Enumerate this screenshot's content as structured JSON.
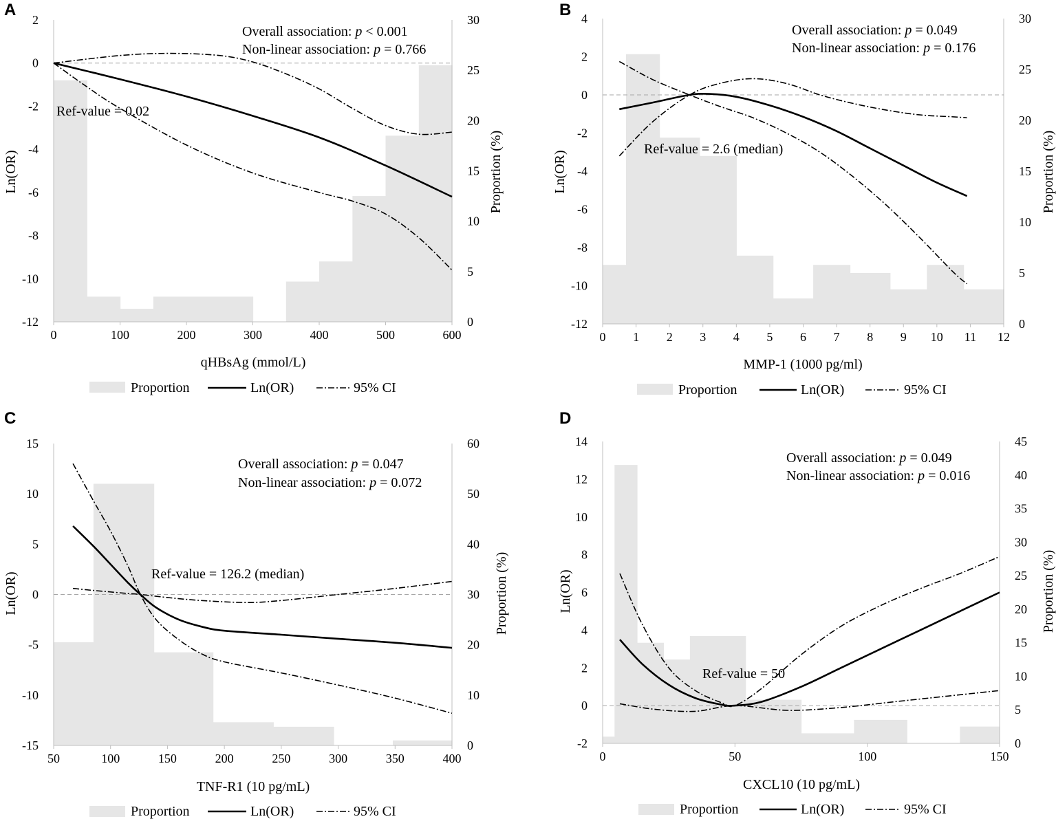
{
  "colors": {
    "bar": "#e6e6e6",
    "line": "#000000",
    "ref": "#a6a6a6",
    "axis": "#bfbfbf"
  },
  "legend": {
    "proportion": "Proportion",
    "lnor": "Ln(OR)",
    "ci": "95% CI"
  },
  "chart_data": [
    {
      "panel": "A",
      "type": "line",
      "title": "",
      "xlabel": "qHBsAg (mmol/L)",
      "ylabel": "Ln(OR)",
      "y2label": "Proportion (%)",
      "xlim": [
        0,
        600
      ],
      "xticks": [
        0,
        100,
        200,
        300,
        400,
        500,
        600
      ],
      "ylim": [
        -12,
        2
      ],
      "yticks": [
        -12,
        -10,
        -8,
        -6,
        -4,
        -2,
        0,
        2
      ],
      "y2lim": [
        0,
        30
      ],
      "y2ticks": [
        0,
        5,
        10,
        15,
        20,
        25,
        30
      ],
      "annotations": {
        "overall_prefix": "Overall association: ",
        "overall_p": "p",
        "overall_value": " < 0.001",
        "nonlinear_prefix": "Non-linear association: ",
        "nonlinear_p": "p",
        "nonlinear_value": " = 0.766",
        "ref": "Ref-value = 0.02"
      },
      "bars": [
        [
          0,
          50,
          24
        ],
        [
          50,
          100,
          2.5
        ],
        [
          100,
          150,
          1.3
        ],
        [
          150,
          300,
          2.5
        ],
        [
          300,
          350,
          0
        ],
        [
          350,
          400,
          4
        ],
        [
          400,
          450,
          6
        ],
        [
          450,
          500,
          12.5
        ],
        [
          500,
          550,
          18.5
        ],
        [
          550,
          600,
          25.5
        ]
      ],
      "series": [
        {
          "name": "Ln(OR)",
          "x": [
            0,
            100,
            200,
            300,
            400,
            500,
            600
          ],
          "values": [
            0,
            -0.75,
            -1.55,
            -2.45,
            -3.45,
            -4.75,
            -6.2
          ]
        },
        {
          "name": "95% CI upper",
          "x": [
            0,
            100,
            175,
            250,
            300,
            350,
            400,
            450,
            500,
            550,
            600
          ],
          "values": [
            0,
            0.35,
            0.45,
            0.35,
            0.05,
            -0.5,
            -1.2,
            -2.1,
            -2.9,
            -3.3,
            -3.2
          ]
        },
        {
          "name": "95% CI lower",
          "x": [
            0,
            50,
            100,
            200,
            300,
            400,
            450,
            500,
            550,
            600
          ],
          "values": [
            0,
            -1.1,
            -2.1,
            -3.8,
            -5.1,
            -6.0,
            -6.4,
            -7.0,
            -8.1,
            -9.6
          ]
        }
      ]
    },
    {
      "panel": "B",
      "type": "line",
      "title": "",
      "xlabel": "MMP-1 (1000 pg/ml)",
      "ylabel": "Ln(OR)",
      "y2label": "Proportion (%)",
      "xlim": [
        0,
        12
      ],
      "xticks": [
        0,
        1,
        2,
        3,
        4,
        5,
        6,
        7,
        8,
        9,
        10,
        11,
        12
      ],
      "ylim": [
        -12,
        4
      ],
      "yticks": [
        -12,
        -10,
        -8,
        -6,
        -4,
        -2,
        0,
        2,
        4
      ],
      "y2lim": [
        0,
        30
      ],
      "y2ticks": [
        0,
        5,
        10,
        15,
        20,
        25,
        30
      ],
      "annotations": {
        "overall_prefix": "Overall association: ",
        "overall_p": "p",
        "overall_value": " = 0.049",
        "nonlinear_prefix": "Non-linear association: ",
        "nonlinear_p": "p",
        "nonlinear_value": " = 0.176",
        "ref": "Ref-value = 2.6 (median)"
      },
      "bars": [
        [
          0,
          0.7,
          5.8
        ],
        [
          0.7,
          1.7,
          26.5
        ],
        [
          1.7,
          2.9,
          18.3
        ],
        [
          2.9,
          4.0,
          16.5
        ],
        [
          4.0,
          5.1,
          6.7
        ],
        [
          5.1,
          6.3,
          2.5
        ],
        [
          6.3,
          7.4,
          5.8
        ],
        [
          7.4,
          8.6,
          5.0
        ],
        [
          8.6,
          9.7,
          3.4
        ],
        [
          9.7,
          10.8,
          5.8
        ],
        [
          10.8,
          12,
          3.4
        ]
      ],
      "series": [
        {
          "name": "Ln(OR)",
          "x": [
            0.5,
            1.5,
            2.6,
            3.2,
            4.0,
            5.0,
            6.0,
            7.0,
            8.0,
            9.0,
            10.0,
            10.9
          ],
          "values": [
            -0.75,
            -0.4,
            0,
            0.05,
            -0.1,
            -0.55,
            -1.15,
            -1.9,
            -2.8,
            -3.7,
            -4.6,
            -5.3
          ]
        },
        {
          "name": "95% CI upper",
          "x": [
            0.5,
            1.5,
            2.6,
            3.5,
            4.5,
            5.5,
            6.5,
            7.5,
            8.5,
            9.5,
            10.5,
            10.9
          ],
          "values": [
            -3.2,
            -1.4,
            0,
            0.6,
            0.85,
            0.6,
            0.0,
            -0.45,
            -0.8,
            -1.05,
            -1.15,
            -1.2
          ]
        },
        {
          "name": "95% CI lower",
          "x": [
            0.5,
            1.5,
            2.6,
            3.5,
            4.5,
            5.5,
            6.5,
            7.5,
            8.5,
            9.5,
            10.5,
            10.9
          ],
          "values": [
            1.75,
            0.8,
            0,
            -0.6,
            -1.2,
            -2.0,
            -3.0,
            -4.3,
            -5.8,
            -7.5,
            -9.3,
            -9.9
          ]
        }
      ]
    },
    {
      "panel": "C",
      "type": "line",
      "title": "",
      "xlabel": "TNF-R1 (10 pg/mL)",
      "ylabel": "Ln(OR)",
      "y2label": "Proportion (%)",
      "xlim": [
        50,
        400
      ],
      "xticks": [
        50,
        100,
        150,
        200,
        250,
        300,
        350,
        400
      ],
      "ylim": [
        -15,
        15
      ],
      "yticks": [
        -15,
        -10,
        -5,
        0,
        5,
        10,
        15
      ],
      "y2lim": [
        0,
        60
      ],
      "y2ticks": [
        0,
        10,
        20,
        30,
        40,
        50,
        60
      ],
      "annotations": {
        "overall_prefix": "Overall association: ",
        "overall_p": "p",
        "overall_value": " = 0.047",
        "nonlinear_prefix": "Non-linear association: ",
        "nonlinear_p": "p",
        "nonlinear_value": " = 0.072",
        "ref": "Ref-value = 126.2 (median)"
      },
      "bars": [
        [
          50,
          85,
          20.5
        ],
        [
          85,
          138,
          52
        ],
        [
          138,
          190,
          18.5
        ],
        [
          190,
          243,
          4.6
        ],
        [
          243,
          296,
          3.7
        ],
        [
          296,
          348,
          0
        ],
        [
          348,
          400,
          1
        ]
      ],
      "series": [
        {
          "name": "Ln(OR)",
          "x": [
            67,
            85,
            100,
            115,
            126.2,
            140,
            160,
            180,
            200,
            250,
            300,
            350,
            400
          ],
          "values": [
            6.8,
            4.8,
            3.0,
            1.2,
            0,
            -1.3,
            -2.5,
            -3.2,
            -3.6,
            -4.0,
            -4.4,
            -4.8,
            -5.3
          ]
        },
        {
          "name": "95% CI upper",
          "x": [
            67,
            85,
            100,
            115,
            126.2,
            150,
            180,
            220,
            250,
            300,
            350,
            400
          ],
          "values": [
            0.6,
            0.4,
            0.25,
            0.1,
            0,
            -0.3,
            -0.6,
            -0.8,
            -0.6,
            0,
            0.6,
            1.3
          ]
        },
        {
          "name": "95% CI lower",
          "x": [
            67,
            85,
            100,
            115,
            126.2,
            140,
            160,
            180,
            200,
            250,
            300,
            350,
            400
          ],
          "values": [
            13.0,
            9.3,
            6.3,
            2.9,
            0,
            -2.5,
            -4.5,
            -5.9,
            -6.7,
            -7.8,
            -9.0,
            -10.3,
            -11.8
          ]
        }
      ]
    },
    {
      "panel": "D",
      "type": "line",
      "title": "",
      "xlabel": "CXCL10 (10 pg/mL)",
      "ylabel": "Ln(OR)",
      "y2label": "Proportion (%)",
      "xlim": [
        0,
        150
      ],
      "xticks": [
        0,
        50,
        100,
        150
      ],
      "ylim": [
        -2,
        14
      ],
      "yticks": [
        -2,
        0,
        2,
        4,
        6,
        8,
        10,
        12,
        14
      ],
      "y2lim": [
        0,
        45
      ],
      "y2ticks": [
        0,
        5,
        10,
        15,
        20,
        25,
        30,
        35,
        40,
        45
      ],
      "annotations": {
        "overall_prefix": "Overall association: ",
        "overall_p": "p",
        "overall_value": " = 0.049",
        "nonlinear_prefix": "Non-linear association: ",
        "nonlinear_p": "p",
        "nonlinear_value": " = 0.016",
        "ref": "Ref-value = 50"
      },
      "bars": [
        [
          0,
          4.5,
          1
        ],
        [
          4.5,
          13,
          41.5
        ],
        [
          13,
          23,
          15
        ],
        [
          23,
          33,
          12.5
        ],
        [
          33,
          54,
          16
        ],
        [
          54,
          75,
          6.5
        ],
        [
          75,
          95,
          1.5
        ],
        [
          95,
          115,
          3.5
        ],
        [
          115,
          135,
          0
        ],
        [
          135,
          150,
          2.5
        ]
      ],
      "series": [
        {
          "name": "Ln(OR)",
          "x": [
            6.5,
            15,
            25,
            35,
            45,
            50,
            60,
            75,
            90,
            105,
            120,
            135,
            150
          ],
          "values": [
            3.5,
            2.2,
            1.1,
            0.4,
            0.05,
            0,
            0.2,
            1.0,
            2.0,
            3.0,
            4.0,
            5.0,
            6.0
          ]
        },
        {
          "name": "95% CI upper",
          "x": [
            6.5,
            15,
            25,
            35,
            45,
            50,
            60,
            75,
            90,
            105,
            120,
            135,
            150
          ],
          "values": [
            7.0,
            4.3,
            2.0,
            0.8,
            0.15,
            0,
            0.9,
            2.7,
            4.2,
            5.3,
            6.2,
            7.0,
            7.9
          ]
        },
        {
          "name": "95% CI lower",
          "x": [
            6.5,
            20,
            35,
            50,
            70,
            90,
            110,
            130,
            150
          ],
          "values": [
            0.1,
            -0.2,
            -0.3,
            0,
            -0.25,
            -0.1,
            0.2,
            0.5,
            0.8
          ]
        }
      ]
    }
  ]
}
